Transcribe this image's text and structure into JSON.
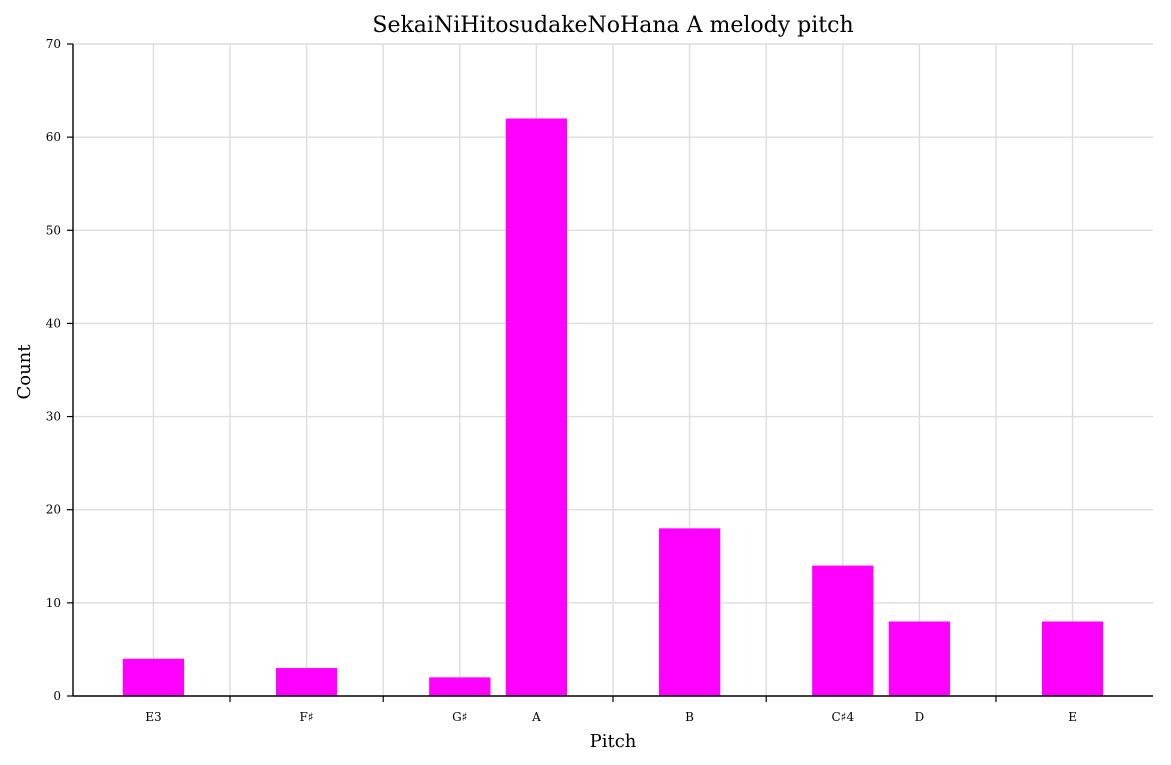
{
  "chart_data": {
    "type": "bar",
    "title": "SekaiNiHitosudakeNoHana A melody pitch",
    "xlabel": "Pitch",
    "ylabel": "Count",
    "ylim": [
      0,
      70
    ],
    "yticks": [
      0,
      10,
      20,
      30,
      40,
      50,
      60,
      70
    ],
    "x_positions": [
      0,
      2,
      4,
      5,
      7,
      9,
      10,
      12
    ],
    "xlim": [
      -1.05,
      13.05
    ],
    "categories": [
      "E3",
      "F♯",
      "G♯",
      "A",
      "B",
      "C♯4",
      "D",
      "E"
    ],
    "values": [
      4,
      3,
      2,
      62,
      18,
      14,
      8,
      8
    ],
    "minor_x_ticks": [
      1,
      3,
      6,
      8,
      11
    ],
    "bar_color": "#ff00ff",
    "grid": true
  }
}
